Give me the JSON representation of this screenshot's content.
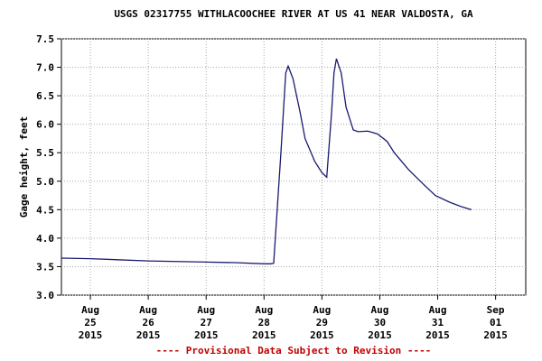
{
  "chart_data": {
    "type": "line",
    "title": "USGS 02317755 WITHLACOOCHEE RIVER AT US 41 NEAR VALDOSTA, GA",
    "y_label": "Gage height, feet",
    "footnote": "---- Provisional Data Subject to Revision ----",
    "x": [
      "2015-08-24 12:00",
      "2015-08-25 00:00",
      "2015-08-26 00:00",
      "2015-08-27 00:00",
      "2015-08-27 12:00",
      "2015-08-28 00:00",
      "2015-08-28 03:00",
      "2015-08-28 04:00",
      "2015-08-28 07:00",
      "2015-08-28 09:00",
      "2015-08-28 10:00",
      "2015-08-28 12:00",
      "2015-08-28 15:00",
      "2015-08-28 17:00",
      "2015-08-28 21:00",
      "2015-08-29 00:00",
      "2015-08-29 02:00",
      "2015-08-29 04:00",
      "2015-08-29 05:00",
      "2015-08-29 06:00",
      "2015-08-29 08:00",
      "2015-08-29 10:00",
      "2015-08-29 13:00",
      "2015-08-29 15:00",
      "2015-08-29 19:00",
      "2015-08-29 23:00",
      "2015-08-30 03:00",
      "2015-08-30 06:00",
      "2015-08-30 12:00",
      "2015-08-30 18:00",
      "2015-08-30 23:00",
      "2015-08-31 05:00",
      "2015-08-31 10:00",
      "2015-08-31 14:00"
    ],
    "series": [
      {
        "name": "Gage height",
        "color": "#1a1a70",
        "values": [
          3.65,
          3.64,
          3.6,
          3.58,
          3.57,
          3.55,
          3.55,
          3.56,
          5.5,
          6.9,
          7.02,
          6.8,
          6.2,
          5.75,
          5.35,
          5.15,
          5.07,
          6.2,
          6.9,
          7.15,
          6.9,
          6.3,
          5.9,
          5.87,
          5.88,
          5.83,
          5.7,
          5.5,
          5.2,
          4.95,
          4.75,
          4.63,
          4.55,
          4.5
        ]
      }
    ],
    "xlim": [
      "2015-08-24 12:00",
      "2015-09-01 12:30"
    ],
    "xticks": [
      {
        "value": "2015-08-25 00:00",
        "label": "Aug\n25\n2015"
      },
      {
        "value": "2015-08-26 00:00",
        "label": "Aug\n26\n2015"
      },
      {
        "value": "2015-08-27 00:00",
        "label": "Aug\n27\n2015"
      },
      {
        "value": "2015-08-28 00:00",
        "label": "Aug\n28\n2015"
      },
      {
        "value": "2015-08-29 00:00",
        "label": "Aug\n29\n2015"
      },
      {
        "value": "2015-08-30 00:00",
        "label": "Aug\n30\n2015"
      },
      {
        "value": "2015-08-31 00:00",
        "label": "Aug\n31\n2015"
      },
      {
        "value": "2015-09-01 00:00",
        "label": "Sep\n01\n2015"
      }
    ],
    "ylim": [
      3,
      7.5
    ],
    "yticks": [
      {
        "value": 3,
        "label": "3.0"
      },
      {
        "value": 3.5,
        "label": "3.5"
      },
      {
        "value": 4,
        "label": "4.0"
      },
      {
        "value": 4.5,
        "label": "4.5"
      },
      {
        "value": 5,
        "label": "5.0"
      },
      {
        "value": 5.5,
        "label": "5.5"
      },
      {
        "value": 6,
        "label": "6.0"
      },
      {
        "value": 6.5,
        "label": "6.5"
      },
      {
        "value": 7,
        "label": "7.0"
      },
      {
        "value": 7.5,
        "label": "7.5"
      }
    ],
    "grid": true
  }
}
